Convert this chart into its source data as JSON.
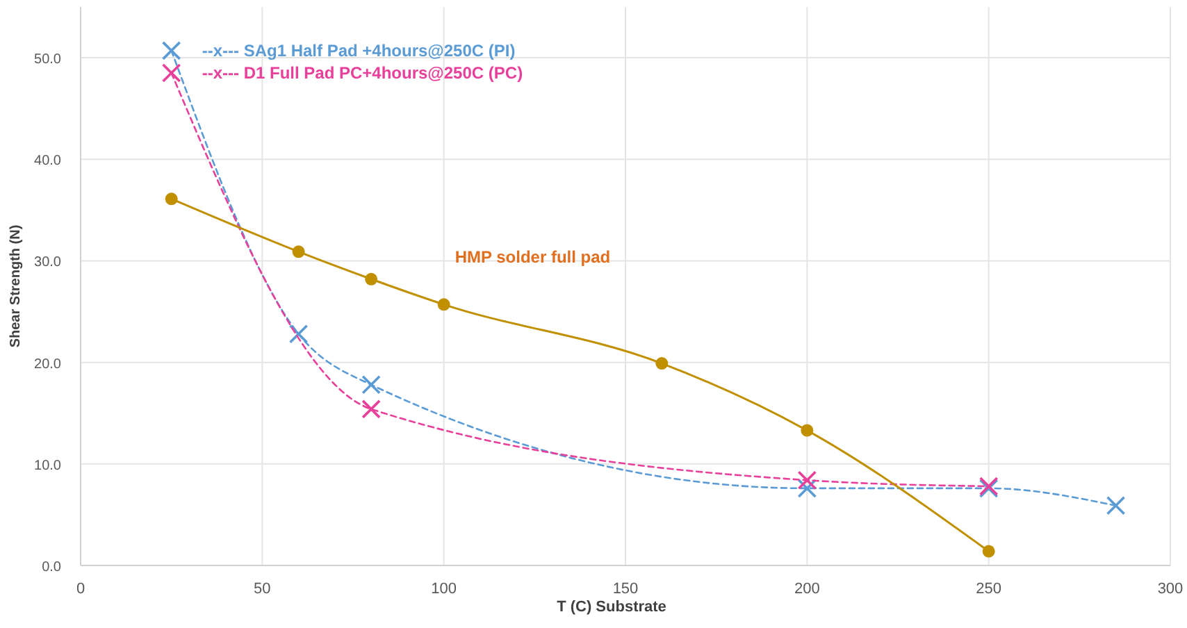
{
  "chart_data": {
    "type": "line",
    "xlabel": "T (C) Substrate",
    "ylabel": "Shear Strength  (N)",
    "xlim": [
      0,
      300
    ],
    "xticks": [
      0,
      50,
      100,
      150,
      200,
      250,
      300
    ],
    "ylim": [
      0,
      55
    ],
    "yticks": [
      {
        "value": 0,
        "label": "0.0"
      },
      {
        "value": 10,
        "label": "10.0"
      },
      {
        "value": 20,
        "label": "20.0"
      },
      {
        "value": 30,
        "label": "30.0"
      },
      {
        "value": 40,
        "label": "40.0"
      },
      {
        "value": 50,
        "label": "50.0"
      }
    ],
    "grid": true,
    "series": [
      {
        "name": "--x--- SAg1 Half Pad +4hours@250C (PI)",
        "color": "#5b9bd5",
        "x": [
          25,
          60,
          80,
          200,
          250,
          285
        ],
        "values": [
          50.7,
          22.8,
          17.8,
          7.6,
          7.6,
          5.9
        ],
        "marker": "cross",
        "line_style": "dashed"
      },
      {
        "name": "--x--- D1 Full Pad PC+4hours@250C (PC)",
        "color": "#e8409a",
        "x": [
          25,
          80,
          200,
          250
        ],
        "values": [
          48.5,
          15.4,
          8.4,
          7.8
        ],
        "marker": "cross",
        "line_style": "dashed"
      },
      {
        "name": "HMP solder full pad",
        "color": "#c09000",
        "x": [
          25,
          60,
          80,
          100,
          160,
          200,
          250
        ],
        "values": [
          36.1,
          30.9,
          28.2,
          25.7,
          19.9,
          13.3,
          1.4
        ],
        "marker": "circle",
        "line_style": "solid"
      }
    ]
  }
}
